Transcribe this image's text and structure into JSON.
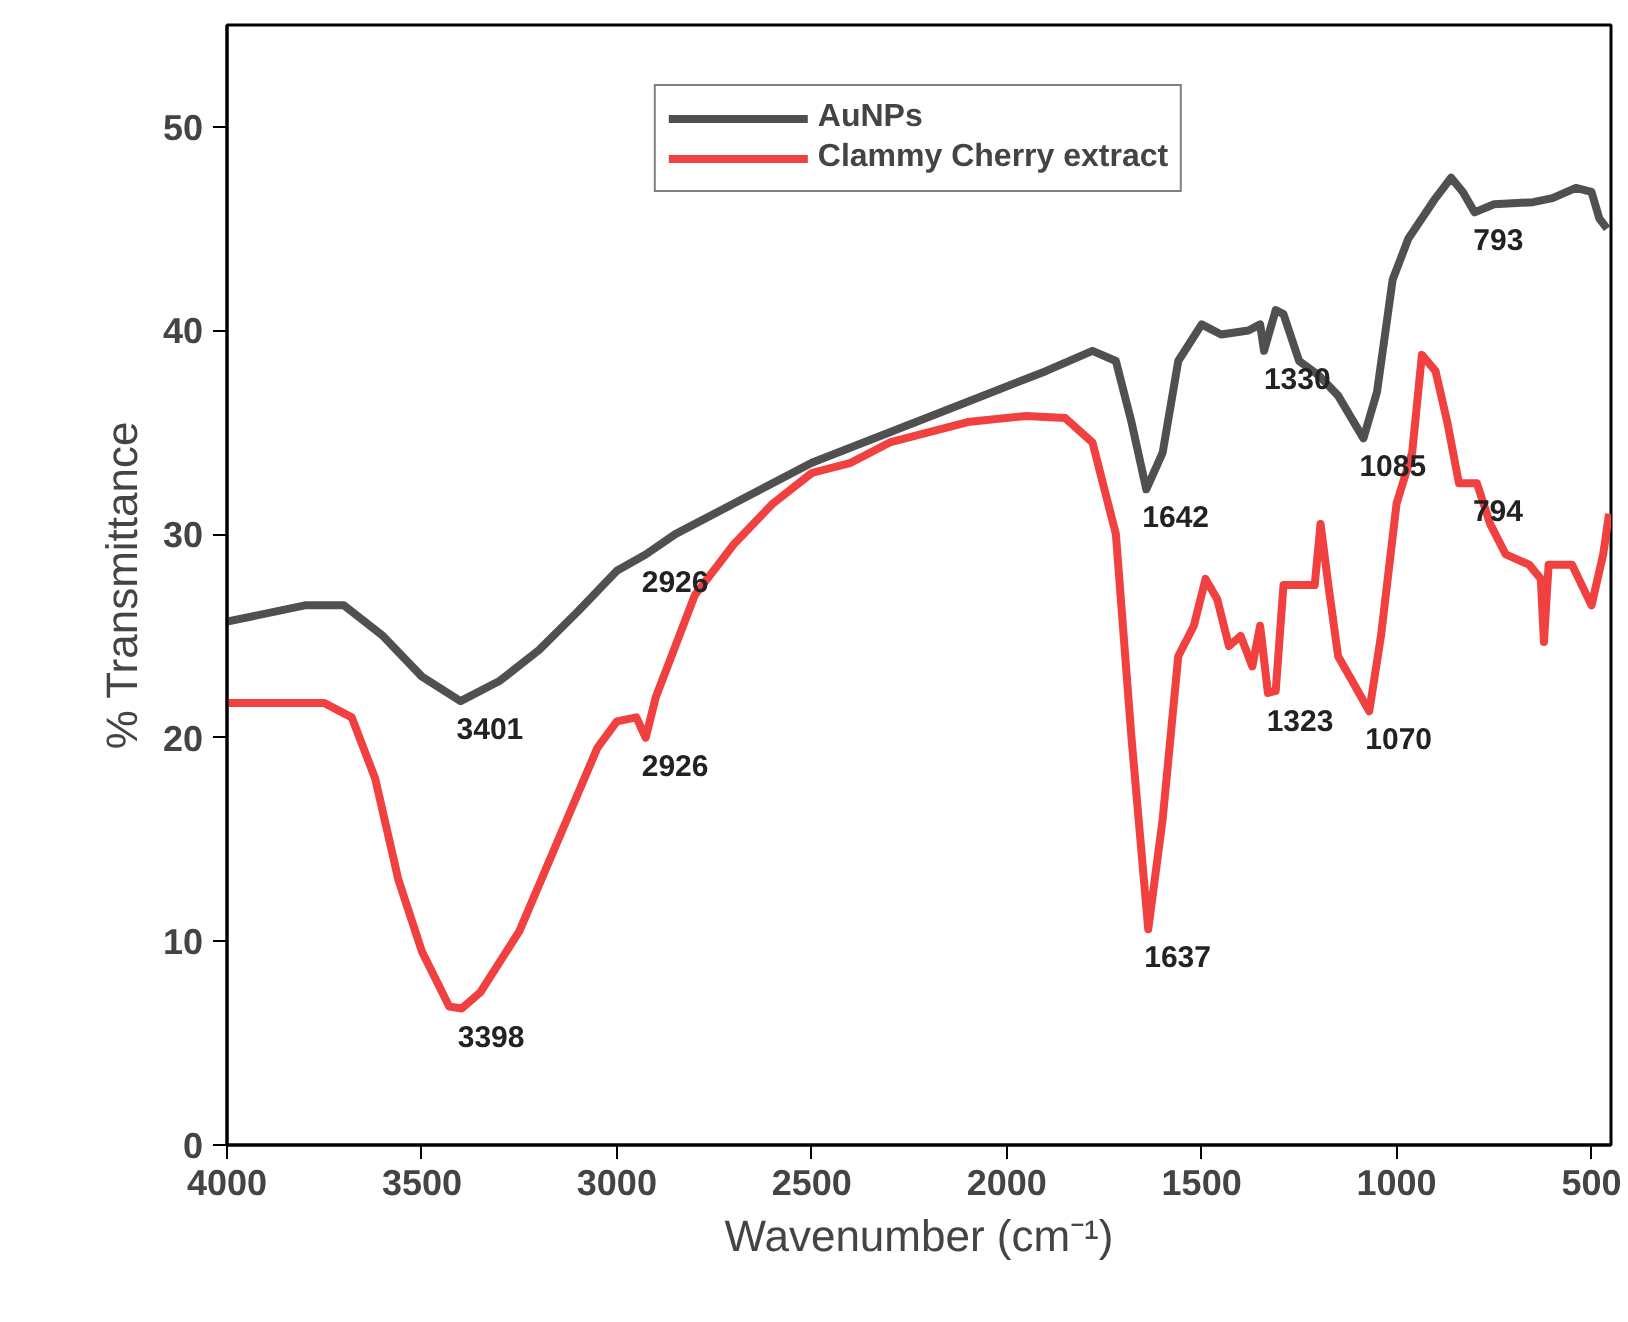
{
  "chart_data": {
    "type": "line",
    "xlabel": "Wavenumber (cm⁻¹)",
    "ylabel": "% Transmittance",
    "xlim": [
      4000,
      450
    ],
    "xticks": [
      4000,
      3500,
      3000,
      2500,
      2000,
      1500,
      1000,
      500
    ],
    "ylim": [
      0,
      55
    ],
    "yticks": [
      0,
      10,
      20,
      30,
      40,
      50
    ],
    "grid": false,
    "legend": "top",
    "marker": "none",
    "line_style": "solid",
    "series": [
      {
        "name": "AuNPs",
        "color": "#505050",
        "x": [
          4000,
          3800,
          3700,
          3600,
          3500,
          3401,
          3300,
          3200,
          3100,
          3000,
          2926,
          2850,
          2700,
          2500,
          2300,
          2100,
          1900,
          1780,
          1720,
          1680,
          1642,
          1600,
          1560,
          1500,
          1450,
          1380,
          1350,
          1340,
          1310,
          1290,
          1250,
          1200,
          1150,
          1085,
          1050,
          1010,
          970,
          900,
          860,
          830,
          800,
          750,
          650,
          600,
          540,
          500,
          480,
          460
        ],
        "values": [
          25.7,
          26.5,
          26.5,
          25,
          23,
          21.8,
          22.8,
          24.3,
          26.2,
          28.2,
          29,
          30,
          31.5,
          33.5,
          35,
          36.5,
          38,
          39,
          38.5,
          35.5,
          32.2,
          34,
          38.5,
          40.3,
          39.8,
          40,
          40.3,
          39,
          41,
          40.8,
          38.5,
          37.8,
          36.8,
          34.7,
          37,
          42.5,
          44.5,
          46.5,
          47.5,
          46.8,
          45.8,
          46.2,
          46.3,
          46.5,
          47,
          46.8,
          45.5,
          45
        ]
      },
      {
        "name": "Clammy Cherry extract",
        "color": "#f04040",
        "x": [
          4000,
          3750,
          3680,
          3620,
          3560,
          3500,
          3430,
          3398,
          3350,
          3250,
          3150,
          3050,
          3000,
          2950,
          2926,
          2900,
          2850,
          2800,
          2700,
          2600,
          2500,
          2400,
          2300,
          2100,
          1950,
          1850,
          1780,
          1720,
          1680,
          1637,
          1600,
          1560,
          1520,
          1490,
          1460,
          1430,
          1400,
          1370,
          1350,
          1330,
          1310,
          1290,
          1240,
          1210,
          1195,
          1175,
          1150,
          1120,
          1070,
          1040,
          1000,
          960,
          935,
          900,
          870,
          840,
          794,
          760,
          720,
          660,
          630,
          622,
          610,
          550,
          500,
          470,
          455
        ],
        "values": [
          21.7,
          21.7,
          21,
          18,
          13,
          9.5,
          6.8,
          6.7,
          7.5,
          10.5,
          15,
          19.5,
          20.8,
          21,
          20,
          22,
          24.5,
          27,
          29.5,
          31.5,
          33,
          33.5,
          34.5,
          35.5,
          35.8,
          35.7,
          34.5,
          30,
          20,
          10.6,
          16,
          24,
          25.5,
          27.8,
          26.8,
          24.5,
          25,
          23.5,
          25.5,
          22.2,
          22.3,
          27.5,
          27.5,
          27.5,
          30.5,
          27.5,
          24,
          23,
          21.3,
          25,
          31.5,
          34,
          38.8,
          38,
          35.5,
          32.5,
          32.5,
          30.5,
          29,
          28.5,
          27.8,
          24.7,
          28.5,
          28.5,
          26.5,
          29,
          31
        ]
      }
    ],
    "annotations": [
      {
        "text": "3401",
        "x": 3401,
        "y": 21.8
      },
      {
        "text": "2926",
        "x": 2926,
        "y": 29
      },
      {
        "text": "1642",
        "x": 1642,
        "y": 32.2
      },
      {
        "text": "1330",
        "x": 1330,
        "y": 39
      },
      {
        "text": "1085",
        "x": 1085,
        "y": 34.7
      },
      {
        "text": "793",
        "x": 793,
        "y": 45.8
      },
      {
        "text": "3398",
        "x": 3398,
        "y": 6.7
      },
      {
        "text": "2926",
        "x": 2926,
        "y": 20
      },
      {
        "text": "1637",
        "x": 1637,
        "y": 10.6
      },
      {
        "text": "1323",
        "x": 1323,
        "y": 22.2
      },
      {
        "text": "1070",
        "x": 1070,
        "y": 21.3
      },
      {
        "text": "794",
        "x": 794,
        "y": 32.5
      }
    ]
  }
}
